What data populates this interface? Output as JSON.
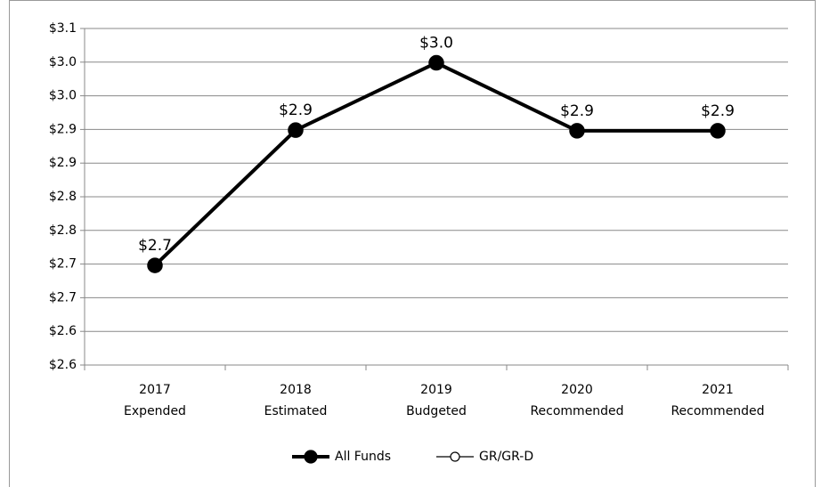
{
  "chart_data": {
    "type": "line",
    "categories": [
      "2017\nExpended",
      "2018\nEstimated",
      "2019\nBudgeted",
      "2020\nRecommended",
      "2021\nRecommended"
    ],
    "series": [
      {
        "name": "All Funds",
        "color": "#000000",
        "marker": "filled",
        "values": [
          2.748,
          2.949,
          3.049,
          2.948,
          2.948
        ],
        "value_labels": [
          "$2.7",
          "$2.9",
          "$3.0",
          "$2.9",
          "$2.9"
        ]
      },
      {
        "name": "GR/GR-D",
        "color": "#000000",
        "marker": "open",
        "values": [
          null,
          null,
          null,
          null,
          null
        ]
      }
    ],
    "ylim": [
      2.6,
      3.1
    ],
    "yticks": [
      {
        "value": 2.6,
        "label": "$2.6"
      },
      {
        "value": 2.65,
        "label": "$2.6"
      },
      {
        "value": 2.7,
        "label": "$2.7"
      },
      {
        "value": 2.75,
        "label": "$2.7"
      },
      {
        "value": 2.8,
        "label": "$2.8"
      },
      {
        "value": 2.85,
        "label": "$2.8"
      },
      {
        "value": 2.9,
        "label": "$2.9"
      },
      {
        "value": 2.95,
        "label": "$2.9"
      },
      {
        "value": 3.0,
        "label": "$3.0"
      },
      {
        "value": 3.05,
        "label": "$3.0"
      },
      {
        "value": 3.1,
        "label": "$3.1"
      }
    ],
    "grid": true,
    "legend": "bottom"
  }
}
